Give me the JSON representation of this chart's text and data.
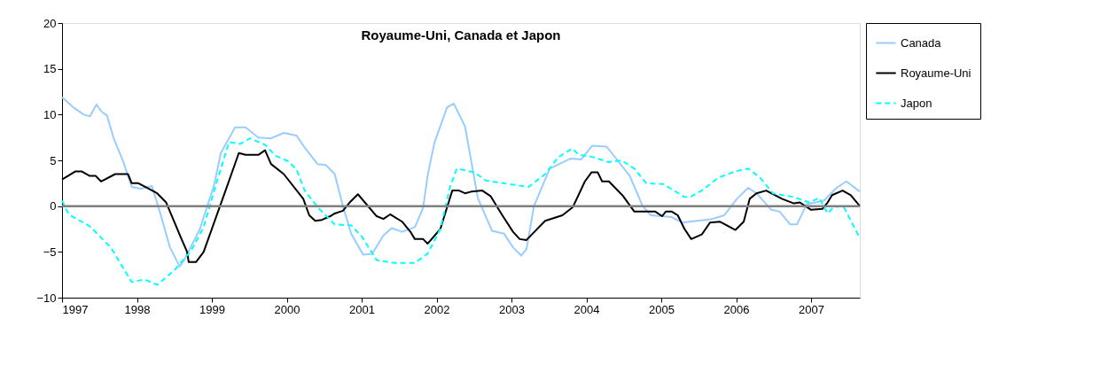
{
  "chart_data": {
    "type": "line",
    "title": "Royaume-Uni, Canada et Japon",
    "xlim": [
      1997,
      2007.65
    ],
    "xticks": [
      1997,
      1998,
      1999,
      2000,
      2001,
      2002,
      2003,
      2004,
      2005,
      2006,
      2007
    ],
    "ylim": [
      -10,
      20
    ],
    "yticks": [
      -10,
      -5,
      0,
      5,
      10,
      15,
      20
    ],
    "grid": false,
    "legend": "right",
    "marker": "none",
    "ref_lines": [
      {
        "axis": "y",
        "value": 0,
        "color": "#808080"
      }
    ],
    "series": [
      {
        "name": "Canada",
        "color": "#99ccff",
        "line_style": "solid",
        "x": [
          1997,
          1997.15,
          1997.29,
          1997.37,
          1997.46,
          1997.53,
          1997.6,
          1997.69,
          1997.82,
          1997.93,
          1998.05,
          1998.2,
          1998.33,
          1998.44,
          1998.57,
          1998.63,
          1998.84,
          1999.03,
          1999.12,
          1999.31,
          1999.45,
          1999.62,
          1999.79,
          1999.96,
          2000.13,
          2000.24,
          2000.41,
          2000.52,
          2000.64,
          2000.75,
          2000.86,
          2001.02,
          2001.14,
          2001.29,
          2001.4,
          2001.54,
          2001.71,
          2001.82,
          2001.88,
          2001.97,
          2002.14,
          2002.23,
          2002.38,
          2002.55,
          2002.74,
          2002.9,
          2003.02,
          2003.13,
          2003.2,
          2003.3,
          2003.51,
          2003.79,
          2003.93,
          2004.08,
          2004.27,
          2004.58,
          2004.75,
          2004.86,
          2005.14,
          2005.28,
          2005.48,
          2005.68,
          2005.84,
          2006.01,
          2006.16,
          2006.27,
          2006.47,
          2006.58,
          2006.72,
          2006.81,
          2006.94,
          2007.17,
          2007.34,
          2007.47,
          2007.65
        ],
        "values": [
          11.9,
          10.8,
          10.0,
          9.8,
          11.1,
          10.3,
          9.9,
          7.4,
          4.8,
          2.1,
          1.9,
          2.2,
          -1.3,
          -4.5,
          -6.6,
          -5.9,
          -2.5,
          2.3,
          5.8,
          8.6,
          8.6,
          7.5,
          7.4,
          8.0,
          7.7,
          6.4,
          4.6,
          4.5,
          3.5,
          0,
          -3.0,
          -5.3,
          -5.2,
          -3.2,
          -2.4,
          -2.8,
          -2.3,
          -0.2,
          3.3,
          6.9,
          10.8,
          11.2,
          8.7,
          0.9,
          -2.7,
          -3.0,
          -4.5,
          -5.4,
          -4.7,
          0,
          4.1,
          5.2,
          5.1,
          6.6,
          6.5,
          3.3,
          0,
          -1.0,
          -1.2,
          -1.8,
          -1.6,
          -1.4,
          -1.0,
          0.8,
          2.0,
          1.4,
          -0.4,
          -0.6,
          -2.0,
          -2.0,
          0.2,
          0.6,
          2.0,
          2.7,
          1.6
        ]
      },
      {
        "name": "Royaume-Uni",
        "color": "#000000",
        "line_style": "solid",
        "x": [
          1997,
          1997.18,
          1997.26,
          1997.37,
          1997.45,
          1997.52,
          1997.71,
          1997.88,
          1997.93,
          1998.02,
          1998.16,
          1998.27,
          1998.39,
          1998.59,
          1998.67,
          1998.69,
          1998.79,
          1998.89,
          1999.17,
          1999.36,
          1999.45,
          1999.62,
          1999.71,
          1999.79,
          1999.96,
          2000.22,
          2000.3,
          2000.38,
          2000.47,
          2000.58,
          2000.64,
          2000.75,
          2000.84,
          2000.95,
          2001.2,
          2001.29,
          2001.38,
          2001.54,
          2001.65,
          2001.71,
          2001.82,
          2001.88,
          2002.05,
          2002.21,
          2002.3,
          2002.38,
          2002.47,
          2002.61,
          2002.72,
          2002.87,
          2003.02,
          2003.11,
          2003.2,
          2003.45,
          2003.68,
          2003.82,
          2003.98,
          2004.07,
          2004.15,
          2004.21,
          2004.3,
          2004.49,
          2004.64,
          2004.92,
          2005.01,
          2005.06,
          2005.14,
          2005.22,
          2005.31,
          2005.4,
          2005.54,
          2005.65,
          2005.78,
          2005.99,
          2006.1,
          2006.18,
          2006.27,
          2006.4,
          2006.61,
          2006.77,
          2006.85,
          2007,
          2007.15,
          2007.22,
          2007.28,
          2007.42,
          2007.53,
          2007.65
        ],
        "values": [
          2.9,
          3.8,
          3.8,
          3.3,
          3.3,
          2.7,
          3.5,
          3.5,
          2.5,
          2.5,
          1.9,
          1.4,
          0.4,
          -3.5,
          -5.0,
          -6.1,
          -6.1,
          -5.0,
          1.4,
          5.8,
          5.6,
          5.6,
          6.1,
          4.6,
          3.5,
          0.8,
          -1.0,
          -1.6,
          -1.5,
          -1.1,
          -0.8,
          -0.5,
          0.4,
          1.3,
          -1.1,
          -1.4,
          -0.9,
          -1.7,
          -2.8,
          -3.6,
          -3.6,
          -4.1,
          -2.5,
          1.7,
          1.7,
          1.4,
          1.6,
          1.7,
          1.1,
          -0.9,
          -2.8,
          -3.6,
          -3.7,
          -1.6,
          -1.0,
          -0.1,
          2.7,
          3.7,
          3.7,
          2.7,
          2.7,
          1.1,
          -0.6,
          -0.6,
          -1.1,
          -0.6,
          -0.6,
          -1.0,
          -2.5,
          -3.6,
          -3.1,
          -1.8,
          -1.7,
          -2.6,
          -1.7,
          0.8,
          1.4,
          1.7,
          0.8,
          0.3,
          0.4,
          -0.4,
          -0.3,
          0.4,
          1.2,
          1.7,
          1.2,
          0
        ]
      },
      {
        "name": "Japon",
        "color": "#00ffff",
        "line_style": "dashed",
        "x": [
          1997,
          1997.09,
          1997.37,
          1997.65,
          1997.93,
          1998.1,
          1998.27,
          1998.5,
          1998.72,
          1998.89,
          1999.06,
          1999.23,
          1999.38,
          1999.51,
          1999.71,
          1999.85,
          2000.02,
          2000.13,
          2000.24,
          2000.41,
          2000.52,
          2000.64,
          2000.86,
          2001,
          2001.2,
          2001.43,
          2001.71,
          2001.88,
          2002.05,
          2002.18,
          2002.27,
          2002.5,
          2002.66,
          2002.89,
          2003.23,
          2003.45,
          2003.62,
          2003.81,
          2003.9,
          2004.07,
          2004.3,
          2004.47,
          2004.64,
          2004.8,
          2005.03,
          2005.31,
          2005.39,
          2005.54,
          2005.76,
          2005.99,
          2006.16,
          2006.32,
          2006.49,
          2006.77,
          2006.97,
          2007.11,
          2007.22,
          2007.3,
          2007.43,
          2007.65
        ],
        "values": [
          0.6,
          -0.9,
          -2.2,
          -4.5,
          -8.3,
          -8.0,
          -8.6,
          -7.0,
          -4.9,
          -2.3,
          2.5,
          7.0,
          6.8,
          7.4,
          6.7,
          5.5,
          4.9,
          4.0,
          1.7,
          -0.1,
          -1.0,
          -2.0,
          -2.1,
          -3.3,
          -5.9,
          -6.2,
          -6.2,
          -5.2,
          -2.5,
          2.1,
          4.1,
          3.7,
          2.8,
          2.5,
          2.1,
          3.5,
          5.3,
          6.3,
          5.6,
          5.4,
          4.8,
          5.0,
          4.1,
          2.5,
          2.4,
          1.0,
          1.0,
          1.7,
          3.1,
          3.8,
          4.1,
          3.1,
          1.4,
          1.0,
          0.4,
          0.9,
          -0.8,
          -0.1,
          0.0,
          -3.5
        ]
      }
    ]
  }
}
